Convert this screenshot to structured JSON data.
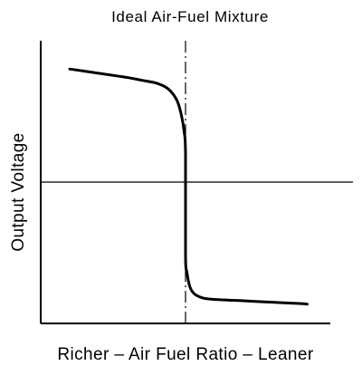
{
  "chart_data": {
    "type": "line",
    "title": "Ideal Air-Fuel Mixture",
    "xlabel": "Richer – Air Fuel Ratio – Leaner",
    "ylabel": "Output Voltage",
    "xlim": [
      0,
      10
    ],
    "ylim": [
      0,
      10
    ],
    "grid": false,
    "reference_lines": {
      "vertical_x": 5.0,
      "vertical_style": "dash-dot",
      "horizontal_y": 5.0,
      "horizontal_style": "solid"
    },
    "series": [
      {
        "x": [
          1.0,
          2.0,
          3.0,
          3.5,
          4.0,
          4.4,
          4.7,
          4.85,
          4.95,
          5.0,
          5.0,
          5.05,
          5.15,
          5.3,
          5.6,
          6.0,
          7.0,
          8.0,
          9.0,
          9.2
        ],
        "y": [
          9.0,
          8.85,
          8.7,
          8.6,
          8.5,
          8.3,
          7.9,
          7.4,
          6.8,
          6.0,
          2.4,
          1.8,
          1.3,
          1.05,
          0.9,
          0.85,
          0.8,
          0.75,
          0.7,
          0.68
        ]
      }
    ]
  }
}
